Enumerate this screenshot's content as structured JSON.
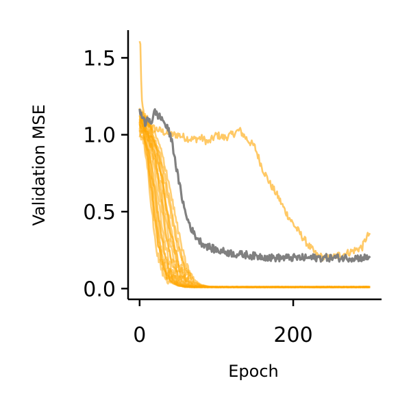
{
  "chart_data": {
    "type": "line",
    "title": "",
    "xlabel": "Epoch",
    "ylabel": "Validation MSE",
    "xlim": [
      -15,
      315
    ],
    "ylim": [
      -0.07,
      1.68
    ],
    "xticks": [
      0,
      200
    ],
    "xtick_labels": [
      "0",
      "200"
    ],
    "yticks": [
      0.0,
      0.5,
      1.0,
      1.5
    ],
    "ytick_labels": [
      "0.0",
      "0.5",
      "1.0",
      "1.5"
    ],
    "grid": false,
    "legend": "none",
    "colors": {
      "orange": "#FFA500",
      "gray": "#808080"
    },
    "series": [
      {
        "color": "#FFA500",
        "alpha": 0.6,
        "x": [
          0,
          1,
          2,
          3,
          5,
          8,
          10,
          15,
          20,
          25,
          30,
          40,
          50,
          60,
          70,
          80,
          90,
          100,
          110,
          120,
          130,
          140,
          150,
          155,
          160,
          170,
          180,
          190,
          200,
          210,
          220,
          230,
          240,
          250,
          260,
          270,
          280,
          290,
          295,
          300
        ],
        "y": [
          1.6,
          1.6,
          1.35,
          1.2,
          1.15,
          1.1,
          1.1,
          1.05,
          1.04,
          1.03,
          1.02,
          1.0,
          1.0,
          0.98,
          0.97,
          0.98,
          0.95,
          1.0,
          0.98,
          1.0,
          1.03,
          0.97,
          0.92,
          0.85,
          0.78,
          0.68,
          0.6,
          0.5,
          0.42,
          0.35,
          0.28,
          0.22,
          0.2,
          0.2,
          0.22,
          0.23,
          0.25,
          0.27,
          0.33,
          0.36
        ]
      },
      {
        "color": "#808080",
        "alpha": 1.0,
        "x": [
          0,
          3,
          5,
          8,
          10,
          15,
          20,
          25,
          30,
          35,
          40,
          45,
          50,
          55,
          60,
          65,
          70,
          75,
          80,
          90,
          100,
          110,
          120,
          130,
          140,
          150,
          160,
          170,
          180,
          190,
          200,
          220,
          240,
          260,
          280,
          300
        ],
        "y": [
          1.15,
          1.13,
          1.1,
          1.05,
          1.12,
          1.08,
          1.15,
          1.12,
          1.1,
          1.05,
          1.0,
          0.88,
          0.72,
          0.6,
          0.48,
          0.42,
          0.36,
          0.33,
          0.3,
          0.27,
          0.25,
          0.24,
          0.23,
          0.22,
          0.22,
          0.21,
          0.21,
          0.2,
          0.2,
          0.2,
          0.2,
          0.2,
          0.2,
          0.2,
          0.2,
          0.2
        ]
      },
      {
        "color": "#FFA500",
        "alpha": 0.55,
        "x": [
          0,
          5,
          10,
          15,
          20,
          25,
          30,
          35,
          40,
          50,
          60,
          70,
          80,
          90,
          100,
          150,
          200,
          300
        ],
        "y": [
          1.1,
          1.05,
          0.95,
          0.78,
          0.55,
          0.35,
          0.2,
          0.12,
          0.07,
          0.03,
          0.015,
          0.01,
          0.01,
          0.01,
          0.01,
          0.01,
          0.01,
          0.01
        ]
      },
      {
        "color": "#FFA500",
        "alpha": 0.55,
        "x": [
          0,
          5,
          10,
          15,
          20,
          25,
          30,
          35,
          40,
          50,
          60,
          70,
          80,
          90,
          100,
          150,
          200,
          300
        ],
        "y": [
          1.05,
          1.0,
          0.85,
          0.62,
          0.42,
          0.26,
          0.15,
          0.09,
          0.05,
          0.02,
          0.012,
          0.01,
          0.01,
          0.01,
          0.01,
          0.01,
          0.01,
          0.01
        ]
      },
      {
        "color": "#FFA500",
        "alpha": 0.55,
        "x": [
          0,
          5,
          10,
          15,
          20,
          25,
          30,
          35,
          40,
          50,
          60,
          70,
          80,
          90,
          100,
          150,
          200,
          300
        ],
        "y": [
          1.12,
          1.08,
          1.0,
          0.9,
          0.75,
          0.55,
          0.38,
          0.24,
          0.14,
          0.05,
          0.02,
          0.012,
          0.01,
          0.01,
          0.01,
          0.01,
          0.01,
          0.01
        ]
      },
      {
        "color": "#FFA500",
        "alpha": 0.55,
        "x": [
          0,
          5,
          10,
          15,
          20,
          25,
          30,
          35,
          40,
          50,
          60,
          70,
          80,
          90,
          100,
          150,
          200,
          300
        ],
        "y": [
          1.08,
          1.06,
          1.02,
          0.95,
          0.85,
          0.7,
          0.52,
          0.36,
          0.22,
          0.08,
          0.03,
          0.015,
          0.01,
          0.01,
          0.01,
          0.01,
          0.01,
          0.01
        ]
      },
      {
        "color": "#FFA500",
        "alpha": 0.55,
        "x": [
          0,
          5,
          10,
          15,
          20,
          25,
          30,
          35,
          40,
          50,
          60,
          70,
          80,
          90,
          100,
          150,
          200,
          300
        ],
        "y": [
          1.0,
          0.95,
          0.8,
          0.55,
          0.32,
          0.18,
          0.1,
          0.06,
          0.04,
          0.02,
          0.01,
          0.01,
          0.01,
          0.01,
          0.01,
          0.01,
          0.01,
          0.01
        ]
      },
      {
        "color": "#FFA500",
        "alpha": 0.55,
        "x": [
          0,
          5,
          10,
          15,
          20,
          25,
          30,
          35,
          40,
          50,
          60,
          70,
          80,
          90,
          100,
          150,
          200,
          300
        ],
        "y": [
          1.15,
          1.12,
          1.08,
          1.02,
          0.95,
          0.85,
          0.7,
          0.55,
          0.4,
          0.18,
          0.07,
          0.03,
          0.015,
          0.01,
          0.01,
          0.01,
          0.01,
          0.01
        ]
      },
      {
        "color": "#FFA500",
        "alpha": 0.55,
        "x": [
          0,
          5,
          10,
          15,
          20,
          25,
          30,
          35,
          40,
          50,
          60,
          70,
          80,
          90,
          100,
          150,
          200,
          300
        ],
        "y": [
          1.1,
          1.08,
          1.05,
          1.0,
          0.92,
          0.82,
          0.68,
          0.52,
          0.38,
          0.16,
          0.06,
          0.025,
          0.012,
          0.01,
          0.01,
          0.01,
          0.01,
          0.01
        ]
      },
      {
        "color": "#FFA500",
        "alpha": 0.55,
        "x": [
          0,
          5,
          10,
          15,
          20,
          25,
          30,
          35,
          40,
          50,
          60,
          70,
          80,
          90,
          100,
          150,
          200,
          300
        ],
        "y": [
          1.06,
          1.02,
          0.9,
          0.7,
          0.48,
          0.3,
          0.18,
          0.1,
          0.06,
          0.025,
          0.012,
          0.01,
          0.01,
          0.01,
          0.01,
          0.01,
          0.01,
          0.01
        ]
      },
      {
        "color": "#FFA500",
        "alpha": 0.55,
        "x": [
          0,
          5,
          10,
          15,
          20,
          25,
          30,
          35,
          40,
          50,
          60,
          70,
          80,
          90,
          100,
          150,
          200,
          300
        ],
        "y": [
          1.13,
          1.1,
          1.06,
          1.0,
          0.93,
          0.86,
          0.76,
          0.64,
          0.5,
          0.26,
          0.1,
          0.04,
          0.02,
          0.012,
          0.01,
          0.01,
          0.01,
          0.01
        ]
      },
      {
        "color": "#FFA500",
        "alpha": 0.55,
        "x": [
          0,
          5,
          10,
          15,
          20,
          25,
          30,
          35,
          40,
          50,
          60,
          70,
          80,
          90,
          100,
          150,
          200,
          300
        ],
        "y": [
          1.04,
          1.0,
          0.92,
          0.8,
          0.62,
          0.44,
          0.28,
          0.17,
          0.1,
          0.035,
          0.015,
          0.01,
          0.01,
          0.01,
          0.01,
          0.01,
          0.01,
          0.01
        ]
      },
      {
        "color": "#FFA500",
        "alpha": 0.55,
        "x": [
          0,
          5,
          10,
          15,
          20,
          25,
          30,
          35,
          40,
          50,
          60,
          70,
          80,
          90,
          100,
          150,
          200,
          300
        ],
        "y": [
          1.1,
          1.07,
          1.03,
          0.97,
          0.9,
          0.8,
          0.66,
          0.5,
          0.35,
          0.14,
          0.05,
          0.02,
          0.012,
          0.01,
          0.01,
          0.01,
          0.01,
          0.01
        ]
      },
      {
        "color": "#FFA500",
        "alpha": 0.55,
        "x": [
          0,
          5,
          10,
          15,
          20,
          25,
          30,
          35,
          40,
          50,
          60,
          70,
          80,
          90,
          100,
          150,
          200,
          300
        ],
        "y": [
          1.15,
          1.12,
          1.1,
          1.05,
          1.0,
          0.94,
          0.86,
          0.76,
          0.64,
          0.38,
          0.16,
          0.06,
          0.025,
          0.012,
          0.01,
          0.01,
          0.01,
          0.01
        ]
      },
      {
        "color": "#FFA500",
        "alpha": 0.55,
        "x": [
          0,
          5,
          10,
          15,
          20,
          25,
          30,
          35,
          40,
          50,
          60,
          70,
          80,
          90,
          100,
          150,
          200,
          300
        ],
        "y": [
          1.02,
          0.98,
          0.88,
          0.68,
          0.45,
          0.27,
          0.15,
          0.08,
          0.05,
          0.02,
          0.01,
          0.01,
          0.01,
          0.01,
          0.01,
          0.01,
          0.01,
          0.01
        ]
      },
      {
        "color": "#FFA500",
        "alpha": 0.55,
        "x": [
          0,
          5,
          10,
          15,
          20,
          25,
          30,
          35,
          40,
          50,
          60,
          70,
          80,
          90,
          100,
          150,
          200,
          300
        ],
        "y": [
          1.08,
          1.05,
          1.0,
          0.93,
          0.82,
          0.66,
          0.48,
          0.32,
          0.2,
          0.07,
          0.025,
          0.012,
          0.01,
          0.01,
          0.01,
          0.01,
          0.01,
          0.01
        ]
      },
      {
        "color": "#FFA500",
        "alpha": 0.55,
        "x": [
          0,
          5,
          10,
          15,
          20,
          25,
          30,
          35,
          40,
          50,
          60,
          70,
          80,
          90,
          100,
          150,
          200,
          300
        ],
        "y": [
          1.12,
          1.1,
          1.07,
          1.03,
          0.97,
          0.9,
          0.8,
          0.68,
          0.55,
          0.3,
          0.12,
          0.045,
          0.02,
          0.012,
          0.01,
          0.01,
          0.01,
          0.01
        ]
      },
      {
        "color": "#FFA500",
        "alpha": 0.55,
        "x": [
          0,
          5,
          10,
          15,
          20,
          25,
          30,
          35,
          40,
          50,
          60,
          70,
          80,
          90,
          100,
          150,
          200,
          300
        ],
        "y": [
          1.1,
          1.06,
          0.98,
          0.84,
          0.66,
          0.46,
          0.3,
          0.18,
          0.11,
          0.04,
          0.015,
          0.01,
          0.01,
          0.01,
          0.01,
          0.01,
          0.01,
          0.01
        ]
      },
      {
        "color": "#FFA500",
        "alpha": 0.55,
        "x": [
          0,
          5,
          10,
          15,
          20,
          25,
          30,
          35,
          40,
          50,
          60,
          70,
          80,
          90,
          100,
          150,
          200,
          300
        ],
        "y": [
          1.06,
          1.04,
          1.0,
          0.94,
          0.86,
          0.74,
          0.58,
          0.42,
          0.28,
          0.1,
          0.035,
          0.015,
          0.01,
          0.01,
          0.01,
          0.01,
          0.01,
          0.01
        ]
      }
    ]
  }
}
